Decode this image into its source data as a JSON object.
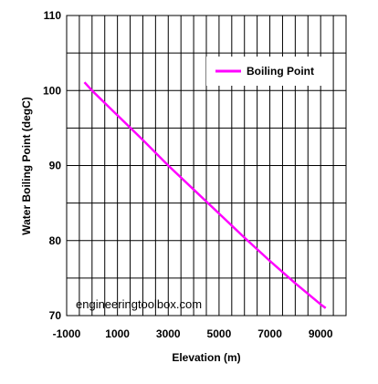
{
  "chart_data": {
    "type": "line",
    "xlabel": "Elevation (m)",
    "ylabel": "Water Boiling Point (degC)",
    "xlim": [
      -1000,
      10000
    ],
    "ylim": [
      70,
      110
    ],
    "x_tick_labels": [
      "-1000",
      "1000",
      "3000",
      "5000",
      "7000",
      "9000"
    ],
    "x_tick_values": [
      -1000,
      1000,
      3000,
      5000,
      7000,
      9000
    ],
    "y_tick_labels": [
      "70",
      "80",
      "90",
      "100",
      "110"
    ],
    "y_tick_values": [
      70,
      80,
      90,
      100,
      110
    ],
    "grid": true,
    "legend_position": "top-right",
    "series": [
      {
        "name": "Boiling Point",
        "color": "#ff00ff",
        "x": [
          -300,
          0,
          1000,
          2000,
          3000,
          4000,
          5000,
          6000,
          7000,
          8000,
          9000,
          9200
        ],
        "y": [
          101.1,
          100.0,
          96.7,
          93.4,
          90.0,
          86.8,
          83.6,
          80.4,
          77.3,
          74.3,
          71.5,
          71.0
        ]
      }
    ],
    "watermark": "engineeringtoolbox.com"
  }
}
